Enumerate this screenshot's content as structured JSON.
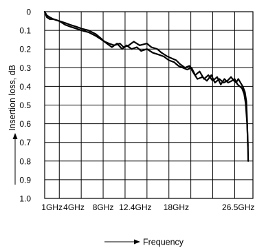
{
  "chart_data": {
    "type": "line",
    "xlabel": "Frequency",
    "ylabel": "Insertion loss, dB",
    "xlim": [
      0,
      28.5
    ],
    "ylim": [
      0,
      1.0
    ],
    "y_inverted": true,
    "grid": true,
    "x_grid": [
      2,
      5,
      8,
      11,
      14,
      17,
      20,
      23,
      26
    ],
    "y_ticks": [
      0,
      0.1,
      0.2,
      0.3,
      0.4,
      0.5,
      0.6,
      0.7,
      0.8,
      0.9,
      1.0
    ],
    "y_tick_labels": [
      "0",
      "0.1",
      "0.2",
      "0.3",
      "0.4",
      "0.5",
      "0.6",
      "0.7",
      "0.8",
      "0.9",
      "1.0"
    ],
    "x_tick_values": [
      1,
      4,
      8,
      12.4,
      18,
      26.5
    ],
    "x_tick_labels": [
      "1GHz",
      "4GHz",
      "8GHz",
      "12.4GHz",
      "18GHz",
      "26.5GHz"
    ],
    "series": [
      {
        "x": [
          0,
          0.3,
          0.7,
          1.2,
          2,
          2.8,
          3.5,
          4.3,
          5,
          6,
          7,
          7.6,
          8.2,
          8.8,
          9.5,
          10.3,
          10.8,
          11.5,
          12.2,
          13,
          14,
          14.6,
          15.4,
          16,
          16.8,
          17.4,
          18,
          18.5,
          19.2,
          19.8,
          20.4,
          20.9,
          21.6,
          22.2,
          22.8,
          23.3,
          23.9,
          24.5,
          25,
          25.5,
          25.9,
          26.2,
          26.5,
          26.8,
          27.1,
          27.4,
          27.6,
          27.7,
          27.8
        ],
        "y": [
          0.0,
          0.02,
          0.03,
          0.04,
          0.05,
          0.06,
          0.07,
          0.08,
          0.09,
          0.1,
          0.12,
          0.14,
          0.16,
          0.17,
          0.18,
          0.17,
          0.19,
          0.18,
          0.16,
          0.18,
          0.17,
          0.19,
          0.2,
          0.22,
          0.24,
          0.25,
          0.26,
          0.28,
          0.3,
          0.29,
          0.33,
          0.36,
          0.35,
          0.37,
          0.34,
          0.38,
          0.36,
          0.38,
          0.37,
          0.35,
          0.37,
          0.38,
          0.36,
          0.38,
          0.4,
          0.43,
          0.48,
          0.58,
          0.72
        ]
      },
      {
        "x": [
          0,
          0.3,
          0.7,
          1.2,
          2,
          2.8,
          3.5,
          4.3,
          5,
          6,
          7,
          7.8,
          8.5,
          9.2,
          9.9,
          10.6,
          11.2,
          11.9,
          12.6,
          13.2,
          14,
          14.8,
          15.6,
          16.3,
          17,
          17.7,
          18.3,
          18.9,
          19.5,
          20.1,
          20.6,
          21.2,
          21.8,
          22.4,
          23,
          23.6,
          24.1,
          24.6,
          25.1,
          25.6,
          26,
          26.4,
          26.7,
          27,
          27.3,
          27.5,
          27.7,
          27.8,
          27.85
        ],
        "y": [
          0.0,
          0.03,
          0.04,
          0.04,
          0.05,
          0.07,
          0.08,
          0.09,
          0.1,
          0.11,
          0.13,
          0.15,
          0.17,
          0.19,
          0.17,
          0.2,
          0.18,
          0.2,
          0.19,
          0.21,
          0.2,
          0.22,
          0.23,
          0.24,
          0.26,
          0.27,
          0.29,
          0.3,
          0.31,
          0.3,
          0.34,
          0.32,
          0.36,
          0.34,
          0.37,
          0.35,
          0.39,
          0.36,
          0.38,
          0.37,
          0.36,
          0.39,
          0.4,
          0.41,
          0.44,
          0.49,
          0.6,
          0.7,
          0.8
        ]
      }
    ]
  }
}
